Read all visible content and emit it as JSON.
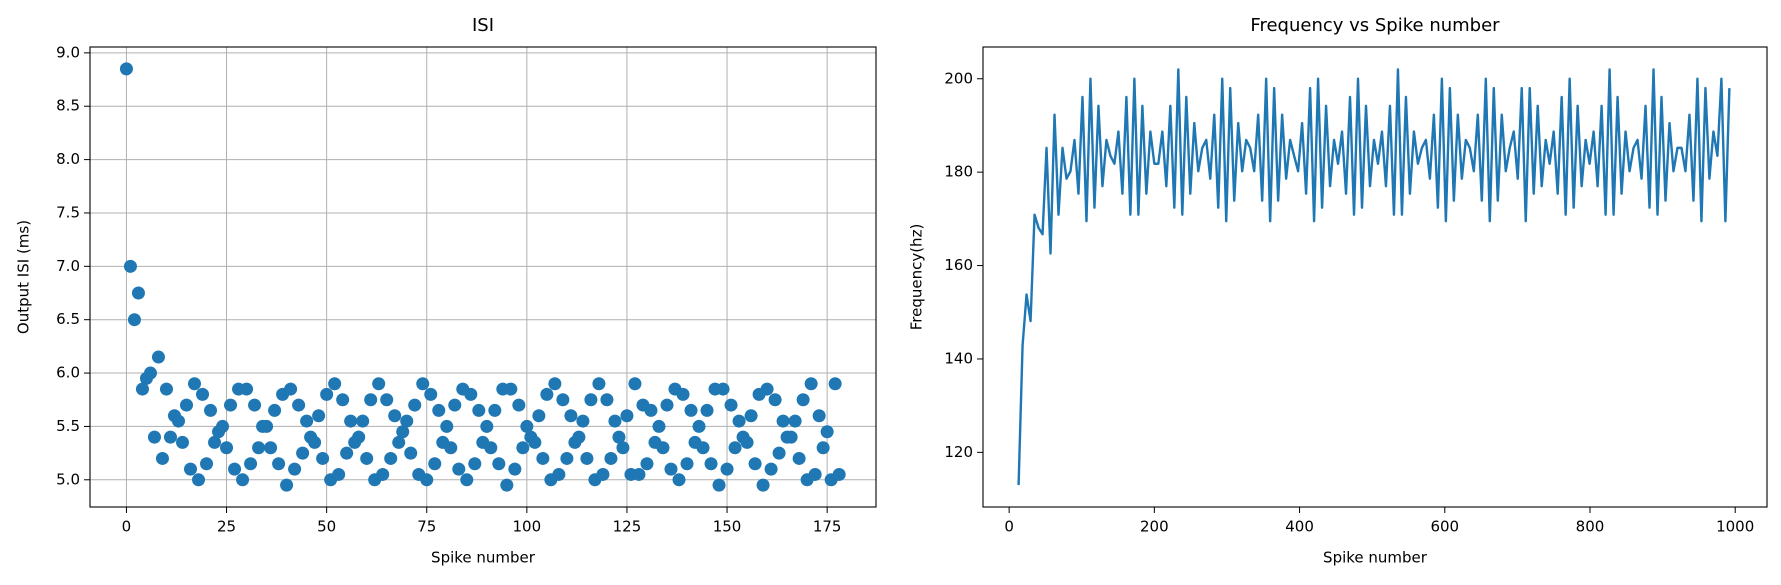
{
  "chart_data": [
    {
      "type": "scatter",
      "title": "ISI",
      "x_label": "Spike number",
      "y_label": "Output ISI (ms)",
      "color": "#1f77b4",
      "grid": true,
      "xlim": [
        -9.1,
        187.2
      ],
      "ylim": [
        4.745,
        9.055
      ],
      "xticks": [
        0,
        25,
        50,
        75,
        100,
        125,
        150,
        175
      ],
      "yticks": [
        {
          "value": 5,
          "label": "5.0"
        },
        5.5,
        {
          "value": 6,
          "label": "6.0"
        },
        6.5,
        {
          "value": 7,
          "label": "7.0"
        },
        7.5,
        {
          "value": 8,
          "label": "8.0"
        },
        8.5,
        {
          "value": 9,
          "label": "9.0"
        }
      ],
      "x": [
        0,
        1,
        2,
        3,
        4,
        5,
        6,
        7,
        8,
        9,
        10,
        11,
        12,
        13,
        14,
        15,
        16,
        17,
        18,
        19,
        20,
        21,
        22,
        23,
        24,
        25,
        26,
        27,
        28,
        29,
        30,
        31,
        32,
        33,
        34,
        35,
        36,
        37,
        38,
        39,
        40,
        41,
        42,
        43,
        44,
        45,
        46,
        47,
        48,
        49,
        50,
        51,
        52,
        53,
        54,
        55,
        56,
        57,
        58,
        59,
        60,
        61,
        62,
        63,
        64,
        65,
        66,
        67,
        68,
        69,
        70,
        71,
        72,
        73,
        74,
        75,
        76,
        77,
        78,
        79,
        80,
        81,
        82,
        83,
        84,
        85,
        86,
        87,
        88,
        89,
        90,
        91,
        92,
        93,
        94,
        95,
        96,
        97,
        98,
        99,
        100,
        101,
        102,
        103,
        104,
        105,
        106,
        107,
        108,
        109,
        110,
        111,
        112,
        113,
        114,
        115,
        116,
        117,
        118,
        119,
        120,
        121,
        122,
        123,
        124,
        125,
        126,
        127,
        128,
        129,
        130,
        131,
        132,
        133,
        134,
        135,
        136,
        137,
        138,
        139,
        140,
        141,
        142,
        143,
        144,
        145,
        146,
        147,
        148,
        149,
        150,
        151,
        152,
        153,
        154,
        155,
        156,
        157,
        158,
        159,
        160,
        161,
        162,
        163,
        164,
        165,
        166,
        167,
        168,
        169,
        170,
        171,
        172,
        173,
        174,
        175,
        176,
        177,
        178
      ],
      "values": [
        8.85,
        7.0,
        6.5,
        6.75,
        5.85,
        5.95,
        6.0,
        5.4,
        6.15,
        5.2,
        5.85,
        5.4,
        5.6,
        5.55,
        5.35,
        5.7,
        5.1,
        5.9,
        5.0,
        5.8,
        5.15,
        5.65,
        5.35,
        5.45,
        5.5,
        5.3,
        5.7,
        5.1,
        5.85,
        5.0,
        5.85,
        5.15,
        5.7,
        5.3,
        5.5,
        5.5,
        5.3,
        5.65,
        5.15,
        5.8,
        4.95,
        5.85,
        5.1,
        5.7,
        5.25,
        5.55,
        5.4,
        5.35,
        5.6,
        5.2,
        5.8,
        5.0,
        5.9,
        5.05,
        5.75,
        5.25,
        5.55,
        5.35,
        5.4,
        5.55,
        5.2,
        5.75,
        5.0,
        5.9,
        5.05,
        5.75,
        5.2,
        5.6,
        5.35,
        5.45,
        5.55,
        5.25,
        5.7,
        5.05,
        5.9,
        5.0,
        5.8,
        5.15,
        5.65,
        5.35,
        5.5,
        5.3,
        5.7,
        5.1,
        5.85,
        5.0,
        5.8,
        5.15,
        5.65,
        5.35,
        5.5,
        5.3,
        5.65,
        5.15,
        5.85,
        4.95,
        5.85,
        5.1,
        5.7,
        5.3,
        5.5,
        5.4,
        5.35,
        5.6,
        5.2,
        5.8,
        5.0,
        5.9,
        5.05,
        5.75,
        5.2,
        5.6,
        5.35,
        5.4,
        5.55,
        5.2,
        5.75,
        5.0,
        5.9,
        5.05,
        5.75,
        5.2,
        5.55,
        5.4,
        5.3,
        5.6,
        5.05,
        5.9,
        5.05,
        5.7,
        5.15,
        5.65,
        5.35,
        5.5,
        5.3,
        5.7,
        5.1,
        5.85,
        5.0,
        5.8,
        5.15,
        5.65,
        5.35,
        5.5,
        5.3,
        5.65,
        5.15,
        5.85,
        4.95,
        5.85,
        5.1,
        5.7,
        5.3,
        5.55,
        5.4,
        5.35,
        5.6,
        5.15,
        5.8,
        4.95,
        5.85,
        5.1,
        5.75,
        5.25,
        5.55,
        5.4,
        5.4,
        5.55,
        5.2,
        5.75,
        5.0,
        5.9,
        5.05,
        5.6,
        5.3,
        5.45,
        5.0,
        5.9,
        5.05
      ]
    },
    {
      "type": "line",
      "title": "Frequency vs Spike number",
      "x_label": "Spike number",
      "y_label": "Frequency(hz)",
      "color": "#1f77b4",
      "grid": false,
      "xlim": [
        -36,
        1043.8
      ],
      "ylim": [
        108.3,
        206.8
      ],
      "xticks": [
        0,
        200,
        400,
        600,
        800,
        1000
      ],
      "yticks": [
        120,
        140,
        160,
        180,
        200
      ],
      "x": [
        13,
        18.5,
        24,
        29.5,
        35,
        40.5,
        46,
        51.5,
        57,
        62.5,
        68,
        73.5,
        79,
        84.5,
        90,
        95.5,
        101,
        106.5,
        112,
        117.5,
        123,
        128.5,
        134,
        139.5,
        145,
        150.5,
        156,
        161.5,
        167,
        172.5,
        178,
        183.5,
        189,
        194.5,
        200,
        205.5,
        211,
        216.5,
        222,
        227.5,
        233,
        238.5,
        244,
        249.5,
        255,
        260.5,
        266,
        271.5,
        277,
        282.5,
        288,
        293.5,
        299,
        304.5,
        310,
        315.5,
        321,
        326.5,
        332,
        337.5,
        343,
        348.5,
        354,
        359.5,
        365,
        370.5,
        376,
        381.5,
        387,
        392.5,
        398,
        403.5,
        409,
        414.5,
        420,
        425.5,
        431,
        436.5,
        442,
        447.5,
        453,
        458.5,
        464,
        469.5,
        475,
        480.5,
        486,
        491.5,
        497,
        502.5,
        508,
        513.5,
        519,
        524.5,
        530,
        535.5,
        541,
        546.5,
        552,
        557.5,
        563,
        568.5,
        574,
        579.5,
        585,
        590.5,
        596,
        601.5,
        607,
        612.5,
        618,
        623.5,
        629,
        634.5,
        640,
        645.5,
        651,
        656.5,
        662,
        667.5,
        673,
        678.5,
        684,
        689.5,
        695,
        700.5,
        706,
        711.5,
        717,
        722.5,
        728,
        733.5,
        739,
        744.5,
        750,
        755.5,
        761,
        766.5,
        772,
        777.5,
        783,
        788.5,
        794,
        799.5,
        805,
        810.5,
        816,
        821.5,
        827,
        832.5,
        838,
        843.5,
        849,
        854.5,
        860,
        865.5,
        871,
        876.5,
        882,
        887.5,
        893,
        898.5,
        904,
        909.5,
        915,
        920.5,
        926,
        931.5,
        937,
        942.5,
        948,
        953.5,
        959,
        964.5,
        970,
        975.5,
        981,
        986.5,
        992
      ],
      "values": [
        113.0,
        142.9,
        153.8,
        148.1,
        170.9,
        168.1,
        166.7,
        185.2,
        162.6,
        192.3,
        170.9,
        185.2,
        178.6,
        180.2,
        186.9,
        175.4,
        196.1,
        169.5,
        200.0,
        172.4,
        194.2,
        177.0,
        186.9,
        183.5,
        181.8,
        188.7,
        175.4,
        196.1,
        170.9,
        200.0,
        170.9,
        194.2,
        175.4,
        188.7,
        181.8,
        181.8,
        188.7,
        177.0,
        194.2,
        172.4,
        202.0,
        170.9,
        196.1,
        175.4,
        190.5,
        180.2,
        185.2,
        186.9,
        178.6,
        192.3,
        172.4,
        200.0,
        169.5,
        198.0,
        173.9,
        190.5,
        180.2,
        186.9,
        185.2,
        180.2,
        192.3,
        173.9,
        200.0,
        169.5,
        198.0,
        173.9,
        192.3,
        178.6,
        186.9,
        183.5,
        180.2,
        190.5,
        175.4,
        198.0,
        169.5,
        200.0,
        172.4,
        194.2,
        177.0,
        186.9,
        181.8,
        188.7,
        175.4,
        196.1,
        170.9,
        200.0,
        172.4,
        194.2,
        177.0,
        186.9,
        181.8,
        188.7,
        177.0,
        194.2,
        170.9,
        202.0,
        170.9,
        196.1,
        175.4,
        188.7,
        181.8,
        185.2,
        186.9,
        178.6,
        192.3,
        172.4,
        200.0,
        169.5,
        198.0,
        173.9,
        192.3,
        178.6,
        186.9,
        185.2,
        180.2,
        192.3,
        173.9,
        200.0,
        169.5,
        198.0,
        173.9,
        192.3,
        180.2,
        185.2,
        188.7,
        178.6,
        198.0,
        169.5,
        198.0,
        175.4,
        194.2,
        177.0,
        186.9,
        181.8,
        188.7,
        175.4,
        196.1,
        170.9,
        200.0,
        172.4,
        194.2,
        177.0,
        186.9,
        181.8,
        188.7,
        177.0,
        194.2,
        170.9,
        202.0,
        170.9,
        196.1,
        175.4,
        188.7,
        180.2,
        185.2,
        186.9,
        178.6,
        194.2,
        172.4,
        202.0,
        170.9,
        196.1,
        173.9,
        190.5,
        180.2,
        185.2,
        185.2,
        180.2,
        192.3,
        173.9,
        200.0,
        169.5,
        198.0,
        178.6,
        188.7,
        183.5,
        200.0,
        169.5,
        198.0
      ]
    }
  ]
}
